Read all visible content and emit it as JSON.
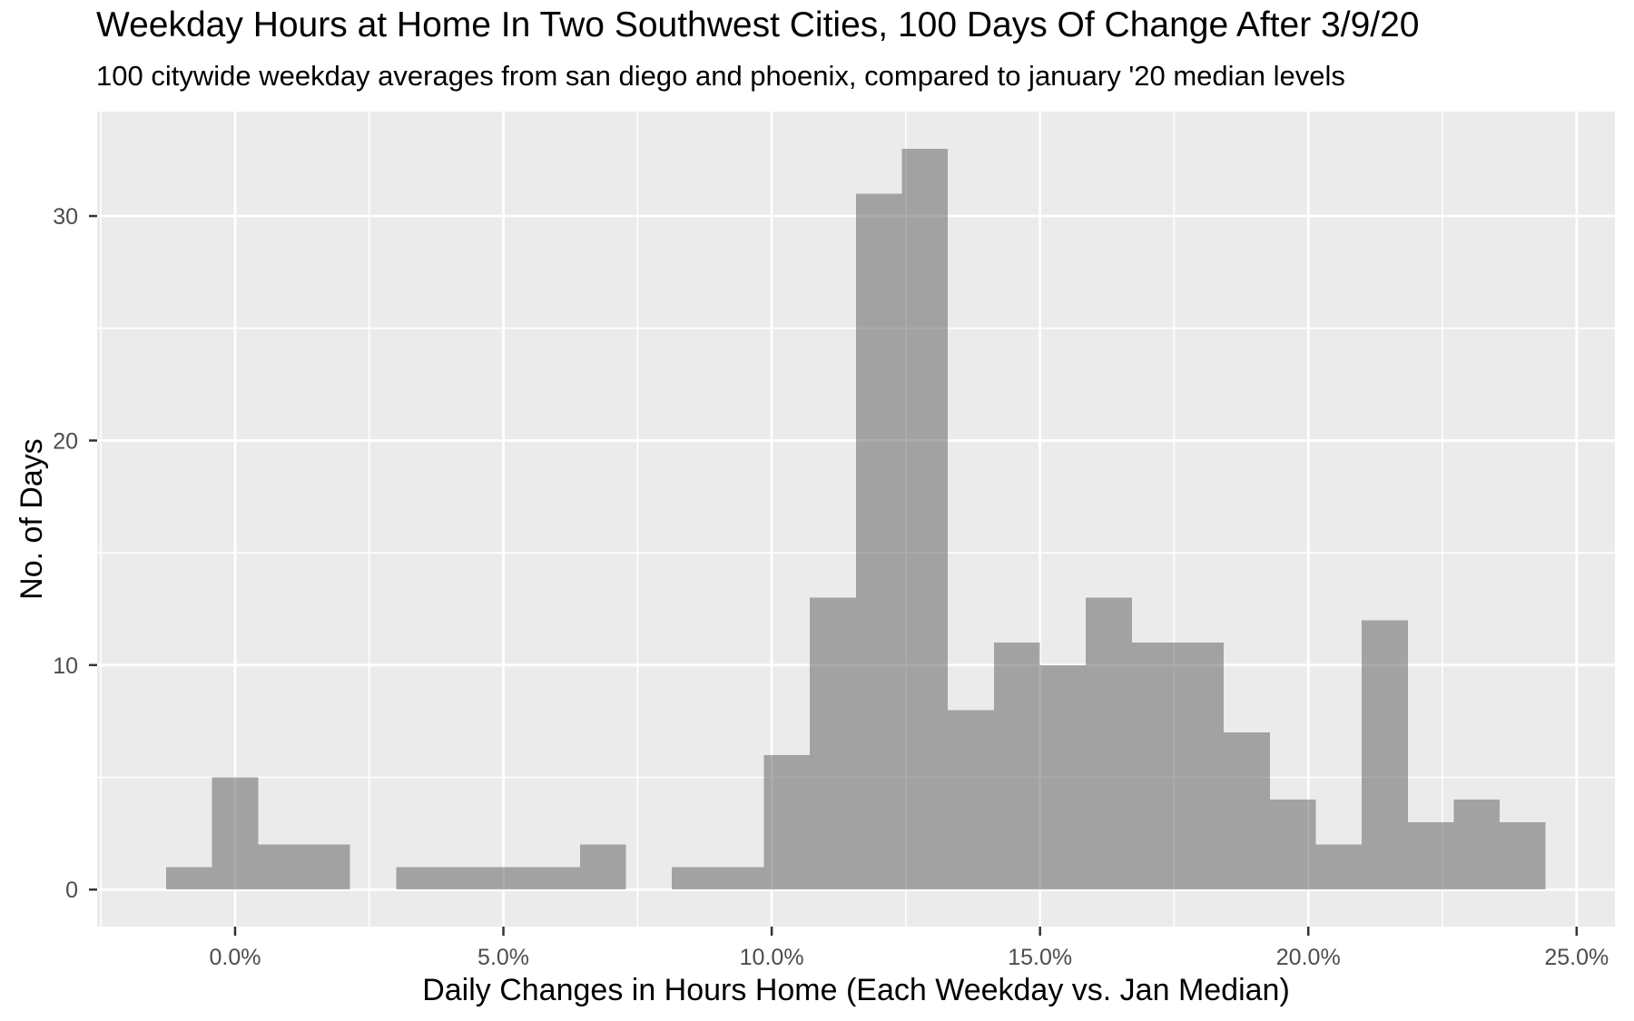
{
  "header": {
    "title": "Weekday Hours at Home In Two Southwest Cities, 100 Days Of Change After 3/9/20",
    "subtitle": "100 citywide weekday averages from san diego and phoenix, compared to january '20 median levels"
  },
  "chart_data": {
    "type": "bar",
    "subtype": "histogram",
    "title": "Weekday Hours at Home In Two Southwest Cities, 100 Days Of Change After 3/9/20",
    "subtitle": "100 citywide weekday averages from san diego and phoenix, compared to january '20 median levels",
    "xlabel": "Daily Changes in Hours Home (Each Weekday vs. Jan Median)",
    "ylabel": "No. of Days",
    "bin_start_pct": -1.286,
    "bin_width_pct": 0.857,
    "bin_centers_pct": [
      -0.86,
      0.0,
      0.86,
      1.71,
      2.57,
      3.43,
      4.29,
      5.14,
      6.0,
      6.86,
      7.71,
      8.57,
      9.43,
      10.29,
      11.14,
      12.0,
      12.86,
      13.71,
      14.57,
      15.43,
      16.29,
      17.14,
      18.0,
      18.86,
      19.71,
      20.57,
      21.43,
      22.29,
      23.14,
      24.0
    ],
    "counts": [
      1,
      5,
      2,
      2,
      0,
      1,
      1,
      1,
      1,
      2,
      0,
      1,
      1,
      6,
      13,
      31,
      33,
      8,
      11,
      10,
      13,
      11,
      11,
      7,
      4,
      2,
      12,
      3,
      4,
      3
    ],
    "x_ticks": {
      "values": [
        0,
        5,
        10,
        15,
        20,
        25
      ],
      "labels": [
        "0.0%",
        "5.0%",
        "10.0%",
        "15.0%",
        "20.0%",
        "25.0%"
      ]
    },
    "y_ticks": {
      "values": [
        0,
        10,
        20,
        30
      ],
      "labels": [
        "0",
        "10",
        "20",
        "30"
      ]
    },
    "x_minor": [
      -2.5,
      2.5,
      7.5,
      12.5,
      17.5,
      22.5
    ],
    "y_minor": [
      5,
      15,
      25
    ],
    "xlim": [
      -2.571,
      25.714
    ],
    "ylim": [
      -1.65,
      34.65
    ],
    "grid": true,
    "legend": "none",
    "colors": {
      "bar_fill": "#595959",
      "bar_opacity": 0.5,
      "panel_bg": "#ebebeb",
      "grid": "#ffffff",
      "tick_text": "#4d4d4d",
      "tick_mark": "#333333",
      "title_text": "#000000"
    }
  }
}
